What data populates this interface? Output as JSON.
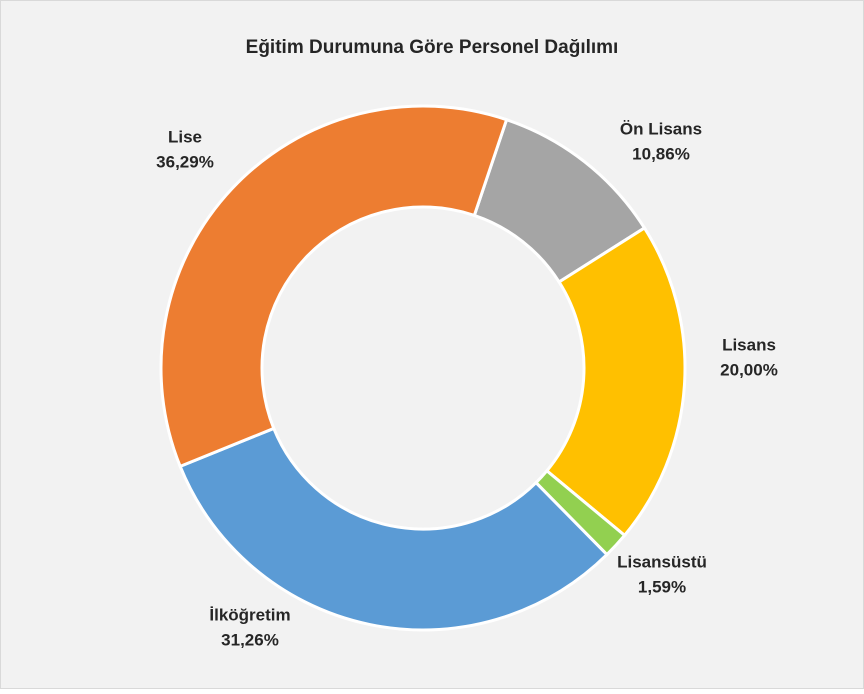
{
  "chart_data": {
    "type": "pie",
    "title": "Eğitim Durumuna Göre Personel Dağılımı",
    "categories": [
      "Ön Lisans",
      "Lisans",
      "Lisansüstü",
      "İlköğretim",
      "Lise"
    ],
    "values": [
      10.86,
      20.0,
      1.59,
      31.26,
      36.29
    ],
    "value_labels": [
      "10,86%",
      "20,00%",
      "1,59%",
      "31,26%",
      "36,29%"
    ],
    "colors": [
      "#a5a5a5",
      "#ffc000",
      "#92d050",
      "#5b9bd5",
      "#ed7d31"
    ]
  }
}
